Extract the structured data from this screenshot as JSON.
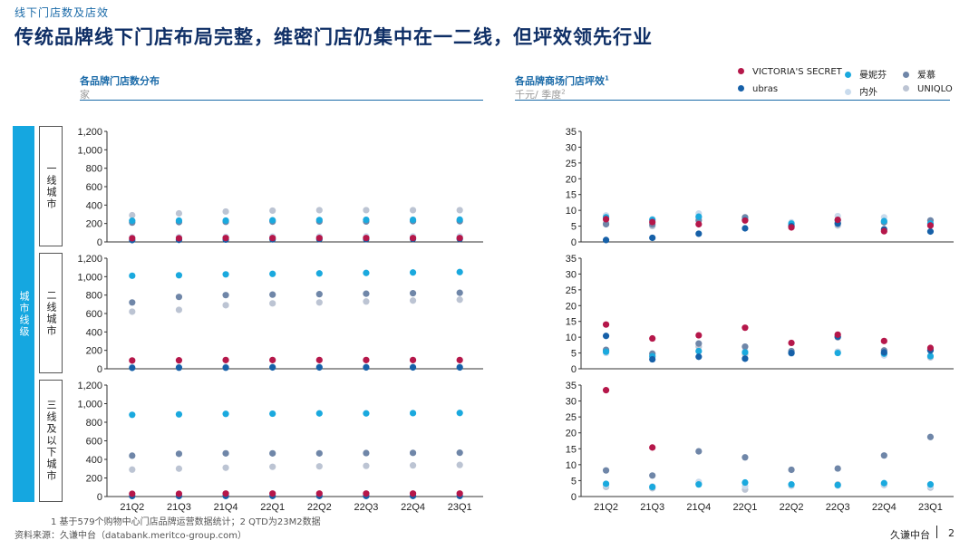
{
  "header": {
    "pretitle": "线下门店数及店效",
    "title": "传统品牌线下门店布局完整，维密门店仍集中在一二线，但坪效领先行业"
  },
  "left_section": {
    "title": "各品牌门店数分布",
    "unit": "家"
  },
  "right_section": {
    "title": "各品牌商场门店坪效",
    "title_sup": "1",
    "unit": "千元/ 季度",
    "unit_sup": "2"
  },
  "legend": [
    {
      "name": "VICTORIA'S SECRET",
      "color": "#b5174a"
    },
    {
      "name": "曼妮芬",
      "color": "#1aa9de"
    },
    {
      "name": "爱慕",
      "color": "#6f86a8"
    },
    {
      "name": "ubras",
      "color": "#1660a8"
    },
    {
      "name": "内外",
      "color": "#c9dbed"
    },
    {
      "name": "UNIQLO",
      "color": "#bcc4d3"
    }
  ],
  "category": {
    "label": "城市线级",
    "rows": [
      "一线城市",
      "二线城市",
      "三线及以下城市"
    ]
  },
  "footnote": "1  基于579个购物中心门店品牌运营数据统计；2  QTD为23M2数据",
  "source": "资料来源：久谦中台（databank.meritco-group.com）",
  "brand": "久谦中台",
  "page_number": "2",
  "chart_data": [
    {
      "type": "scatter",
      "title": "各品牌门店数分布 - 一线城市",
      "ylabel": "家",
      "ylim": [
        0,
        1200
      ],
      "yticks": [
        "0",
        "200",
        "400",
        "600",
        "800",
        "1,000",
        "1,200"
      ],
      "categories": [
        "21Q2",
        "21Q3",
        "21Q4",
        "22Q1",
        "22Q2",
        "22Q3",
        "22Q4",
        "23Q1"
      ],
      "series": [
        {
          "name": "VICTORIA'S SECRET",
          "values": [
            40,
            40,
            42,
            42,
            42,
            42,
            42,
            42
          ]
        },
        {
          "name": "曼妮芬",
          "values": [
            230,
            232,
            232,
            235,
            238,
            240,
            240,
            242
          ]
        },
        {
          "name": "爱慕",
          "values": [
            210,
            215,
            218,
            220,
            222,
            222,
            225,
            225
          ]
        },
        {
          "name": "ubras",
          "values": [
            20,
            22,
            25,
            28,
            30,
            30,
            32,
            32
          ]
        },
        {
          "name": "内外",
          "values": [
            50,
            52,
            55,
            58,
            58,
            60,
            60,
            60
          ]
        },
        {
          "name": "UNIQLO",
          "values": [
            290,
            310,
            330,
            340,
            345,
            345,
            345,
            345
          ]
        }
      ]
    },
    {
      "type": "scatter",
      "title": "各品牌门店数分布 - 二线城市",
      "ylabel": "家",
      "ylim": [
        0,
        1200
      ],
      "yticks": [
        "0",
        "200",
        "400",
        "600",
        "800",
        "1,000",
        "1,200"
      ],
      "categories": [
        "21Q2",
        "21Q3",
        "21Q4",
        "22Q1",
        "22Q2",
        "22Q3",
        "22Q4",
        "23Q1"
      ],
      "series": [
        {
          "name": "VICTORIA'S SECRET",
          "values": [
            90,
            92,
            95,
            95,
            95,
            95,
            95,
            95
          ]
        },
        {
          "name": "曼妮芬",
          "values": [
            1010,
            1015,
            1025,
            1030,
            1035,
            1040,
            1045,
            1050
          ]
        },
        {
          "name": "爱慕",
          "values": [
            720,
            780,
            800,
            805,
            810,
            815,
            820,
            825
          ]
        },
        {
          "name": "ubras",
          "values": [
            10,
            12,
            12,
            15,
            15,
            15,
            15,
            15
          ]
        },
        {
          "name": "内外",
          "values": [
            20,
            20,
            22,
            22,
            22,
            22,
            22,
            22
          ]
        },
        {
          "name": "UNIQLO",
          "values": [
            620,
            640,
            690,
            710,
            720,
            730,
            740,
            750
          ]
        }
      ]
    },
    {
      "type": "scatter",
      "title": "各品牌门店数分布 - 三线及以下城市",
      "ylabel": "家",
      "ylim": [
        0,
        1200
      ],
      "yticks": [
        "0",
        "200",
        "400",
        "600",
        "800",
        "1,000",
        "1,200"
      ],
      "categories": [
        "21Q2",
        "21Q3",
        "21Q4",
        "22Q1",
        "22Q2",
        "22Q3",
        "22Q4",
        "23Q1"
      ],
      "series": [
        {
          "name": "VICTORIA'S SECRET",
          "values": [
            30,
            30,
            32,
            32,
            32,
            32,
            32,
            32
          ]
        },
        {
          "name": "曼妮芬",
          "values": [
            880,
            885,
            890,
            892,
            895,
            895,
            898,
            900
          ]
        },
        {
          "name": "爱慕",
          "values": [
            440,
            460,
            465,
            465,
            465,
            468,
            470,
            472
          ]
        },
        {
          "name": "ubras",
          "values": [
            5,
            5,
            6,
            6,
            6,
            6,
            6,
            6
          ]
        },
        {
          "name": "内外",
          "values": [
            8,
            8,
            8,
            8,
            8,
            8,
            8,
            8
          ]
        },
        {
          "name": "UNIQLO",
          "values": [
            290,
            300,
            310,
            320,
            325,
            330,
            335,
            340
          ]
        }
      ]
    },
    {
      "type": "scatter",
      "title": "各品牌商场门店坪效 - 一线城市",
      "ylabel": "千元/ 季度",
      "ylim": [
        0,
        35
      ],
      "yticks": [
        "0",
        "5",
        "10",
        "15",
        "20",
        "25",
        "30",
        "35"
      ],
      "categories": [
        "21Q2",
        "21Q3",
        "21Q4",
        "22Q1",
        "22Q2",
        "22Q3",
        "22Q4",
        "23Q1"
      ],
      "series": [
        {
          "name": "VICTORIA'S SECRET",
          "values": [
            7.2,
            6.3,
            5.6,
            6.8,
            4.6,
            7.0,
            3.4,
            5.2
          ]
        },
        {
          "name": "曼妮芬",
          "values": [
            7.8,
            7.0,
            8.0,
            7.0,
            5.8,
            6.8,
            6.6,
            5.8
          ]
        },
        {
          "name": "爱慕",
          "values": [
            5.6,
            5.5,
            6.8,
            7.8,
            5.0,
            6.0,
            6.2,
            6.8
          ]
        },
        {
          "name": "ubras",
          "values": [
            0.6,
            1.3,
            2.6,
            4.3,
            5.0,
            5.8,
            4.0,
            3.3
          ]
        },
        {
          "name": "内外",
          "values": [
            8.4,
            7.2,
            9.0,
            7.6,
            6.2,
            8.2,
            7.8,
            6.8
          ]
        },
        {
          "name": "UNIQLO",
          "values": [
            6.0,
            5.0,
            7.6,
            7.2,
            5.4,
            5.2,
            6.6,
            5.6
          ]
        }
      ]
    },
    {
      "type": "scatter",
      "title": "各品牌商场门店坪效 - 二线城市",
      "ylabel": "千元/ 季度",
      "ylim": [
        0,
        35
      ],
      "yticks": [
        "0",
        "5",
        "10",
        "15",
        "20",
        "25",
        "30",
        "35"
      ],
      "categories": [
        "21Q2",
        "21Q3",
        "21Q4",
        "22Q1",
        "22Q2",
        "22Q3",
        "22Q4",
        "23Q1"
      ],
      "series": [
        {
          "name": "VICTORIA'S SECRET",
          "values": [
            14.0,
            9.6,
            10.6,
            13.0,
            8.2,
            10.8,
            8.8,
            6.6
          ]
        },
        {
          "name": "曼妮芬",
          "values": [
            5.4,
            4.0,
            5.6,
            5.2,
            5.0,
            5.0,
            4.8,
            4.0
          ]
        },
        {
          "name": "爱慕",
          "values": [
            6.0,
            4.8,
            8.0,
            7.0,
            5.6,
            10.0,
            5.8,
            6.0
          ]
        },
        {
          "name": "ubras",
          "values": [
            10.4,
            3.0,
            3.8,
            3.2,
            5.0,
            10.2,
            5.2,
            5.8
          ]
        },
        {
          "name": "内外",
          "values": [
            5.0,
            4.4,
            5.4,
            5.6,
            4.8,
            5.2,
            4.2,
            4.0
          ]
        },
        {
          "name": "UNIQLO",
          "values": [
            5.8,
            3.8,
            7.0,
            4.6,
            5.4,
            5.4,
            4.6,
            3.6
          ]
        }
      ]
    },
    {
      "type": "scatter",
      "title": "各品牌商场门店坪效 - 三线及以下城市",
      "ylabel": "千元/ 季度",
      "ylim": [
        0,
        35
      ],
      "yticks": [
        "0",
        "5",
        "10",
        "15",
        "20",
        "25",
        "30",
        "35"
      ],
      "categories": [
        "21Q2",
        "21Q3",
        "21Q4",
        "22Q1",
        "22Q2",
        "22Q3",
        "22Q4",
        "23Q1"
      ],
      "series": [
        {
          "name": "VICTORIA'S SECRET",
          "values": [
            33.4,
            15.4,
            null,
            null,
            null,
            null,
            null,
            null
          ]
        },
        {
          "name": "曼妮芬",
          "values": [
            4.0,
            3.0,
            3.8,
            4.4,
            3.8,
            3.6,
            4.2,
            3.8
          ]
        },
        {
          "name": "爱慕",
          "values": [
            8.2,
            6.6,
            14.2,
            12.3,
            8.4,
            8.8,
            12.9,
            18.7
          ]
        },
        {
          "name": "ubras",
          "values": [
            null,
            null,
            null,
            null,
            null,
            null,
            null,
            null
          ]
        },
        {
          "name": "内外",
          "values": [
            3.6,
            3.2,
            4.6,
            3.2,
            3.6,
            3.4,
            3.8,
            3.2
          ]
        },
        {
          "name": "UNIQLO",
          "values": [
            3.0,
            2.6,
            4.2,
            2.2,
            3.4,
            3.8,
            3.6,
            2.8
          ]
        }
      ]
    }
  ]
}
